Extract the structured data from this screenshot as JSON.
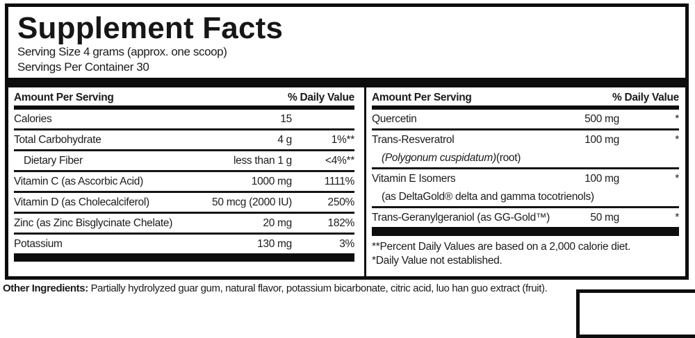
{
  "title": "Supplement Facts",
  "serving": {
    "size": "Serving Size 4 grams (approx. one scoop)",
    "per_container": "Servings Per Container 30"
  },
  "table_header": {
    "amount": "Amount Per Serving",
    "dv": "% Daily Value"
  },
  "left_rows": [
    {
      "name": "Calories",
      "amount": "15",
      "dv": ""
    },
    {
      "name": "Total Carbohydrate",
      "amount": "4 g",
      "dv": "1%**"
    },
    {
      "name": "Dietary Fiber",
      "amount": "less than 1 g",
      "dv": "<4%**",
      "indent": true
    },
    {
      "name": "Vitamin C (as Ascorbic Acid)",
      "amount": "1000 mg",
      "dv": "1111%"
    },
    {
      "name": "Vitamin D (as Cholecalciferol)",
      "amount": "50 mcg (2000 IU)",
      "dv": "250%"
    },
    {
      "name": "Zinc (as Zinc Bisglycinate Chelate)",
      "amount": "20 mg",
      "dv": "182%"
    },
    {
      "name": "Potassium",
      "amount": "130 mg",
      "dv": "3%"
    }
  ],
  "right_rows": [
    {
      "name": "Quercetin",
      "amount": "500 mg",
      "dv": "*"
    },
    {
      "name": "Trans-Resveratrol",
      "amount": "100 mg",
      "dv": "*",
      "subline_italic": "(Polygonum cuspidatum)",
      "subline_text": "(root)"
    },
    {
      "name": "Vitamin E Isomers",
      "amount": "100 mg",
      "dv": "*",
      "subline_text": "(as DeltaGold® delta and gamma tocotrienols)"
    },
    {
      "name": "Trans-Geranylgeraniol (as GG-Gold™)",
      "amount": "50 mg",
      "dv": "*"
    }
  ],
  "footnotes": [
    "**Percent Daily Values are based on a 2,000 calorie diet.",
    "*Daily Value not established."
  ],
  "other_ingredients": {
    "label": "Other Ingredients:",
    "text": " Partially hydrolyzed guar gum, natural flavor, potassium bicarbonate, citric acid, luo han guo extract (fruit)."
  },
  "colors": {
    "ink": "#1b1b1b",
    "bar": "#0d0d0d",
    "background": "#ffffff"
  }
}
